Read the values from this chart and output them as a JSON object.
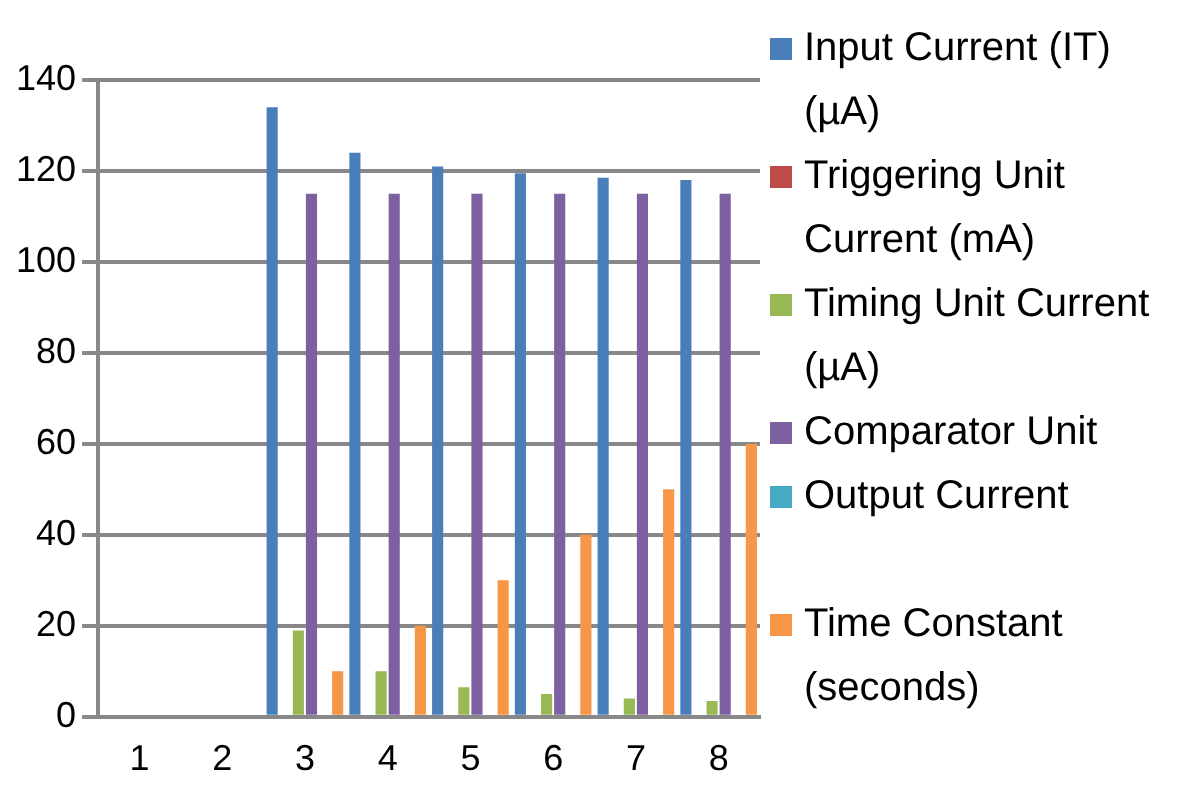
{
  "chart_data": {
    "type": "bar",
    "categories": [
      "1",
      "2",
      "3",
      "4",
      "5",
      "6",
      "7",
      "8"
    ],
    "series": [
      {
        "name": "Input Current (IT) (µA)",
        "color": "#4a7ebb",
        "values": [
          0,
          0,
          134,
          124,
          121,
          119.5,
          118.5,
          118
        ]
      },
      {
        "name": "Triggering Unit Current (mA)",
        "color": "#be4b48",
        "values": [
          0,
          0,
          0,
          0,
          0,
          0,
          0,
          0
        ]
      },
      {
        "name": "Timing Unit Current (µA)",
        "color": "#98b954",
        "values": [
          0,
          0,
          19,
          10,
          6.5,
          5,
          4,
          3.5
        ]
      },
      {
        "name": "Comparator Unit",
        "color": "#7d60a0",
        "values": [
          0,
          0,
          115,
          115,
          115,
          115,
          115,
          115
        ]
      },
      {
        "name": "Output Current",
        "color": "#46aac5",
        "values": [
          0,
          0,
          0,
          0,
          0,
          0,
          0,
          0
        ]
      },
      {
        "name": "Time Constant (seconds)",
        "color": "#f79646",
        "values": [
          0,
          0,
          10,
          20,
          30,
          40,
          50,
          60
        ]
      }
    ],
    "ylim": [
      0,
      140
    ],
    "yticks": [
      0,
      20,
      40,
      60,
      80,
      100,
      120,
      140
    ],
    "grid": "y",
    "legend": "right"
  }
}
